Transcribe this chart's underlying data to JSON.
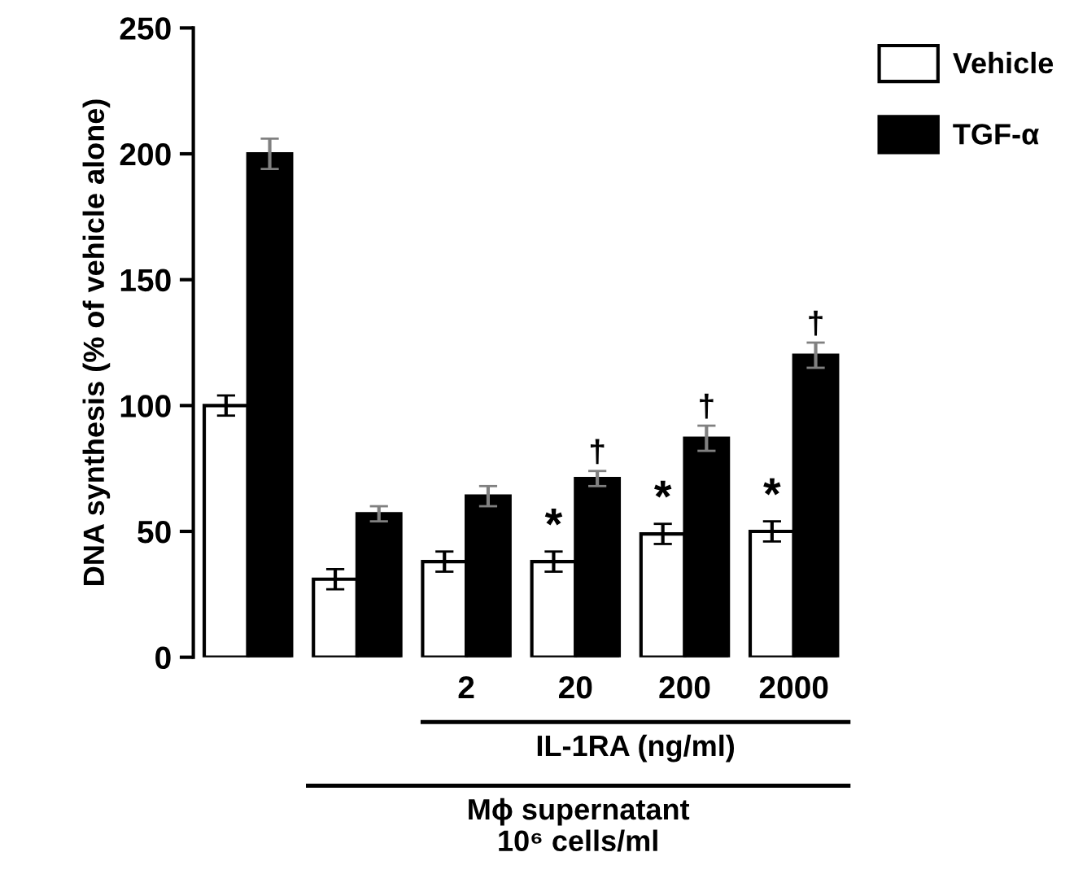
{
  "chart_data": {
    "type": "bar",
    "ylabel": "DNA synthesis (% of vehicle alone)",
    "categories": [
      null,
      null,
      "2",
      "20",
      "200",
      "2000"
    ],
    "series": [
      {
        "name": "Vehicle",
        "color": "#ffffff",
        "values": [
          100,
          31,
          38,
          38,
          49,
          50
        ],
        "errors": [
          4,
          4,
          4,
          4,
          4,
          4
        ]
      },
      {
        "name": "TGF-α",
        "color": "#000000",
        "values": [
          200,
          57,
          64,
          71,
          87,
          120
        ],
        "errors": [
          6,
          3,
          4,
          3,
          5,
          5
        ]
      }
    ],
    "ylim": [
      0,
      250
    ],
    "yticks": [
      0,
      50,
      100,
      150,
      200,
      250
    ],
    "grid": false,
    "legend": "top right",
    "annotations": [
      {
        "text": "*",
        "x": "20",
        "y": 38
      },
      {
        "text": "*",
        "x": "200",
        "y": 49
      },
      {
        "text": "*",
        "x": "2000",
        "y": 50
      },
      {
        "text": "†",
        "x": "20",
        "y": 71
      },
      {
        "text": "†",
        "x": "200",
        "y": 87
      },
      {
        "text": "†",
        "x": "2000",
        "y": 120
      },
      "IL-1RA (ng/ml)",
      "Mϕ supernatant",
      "10⁶ cells/ml"
    ]
  }
}
